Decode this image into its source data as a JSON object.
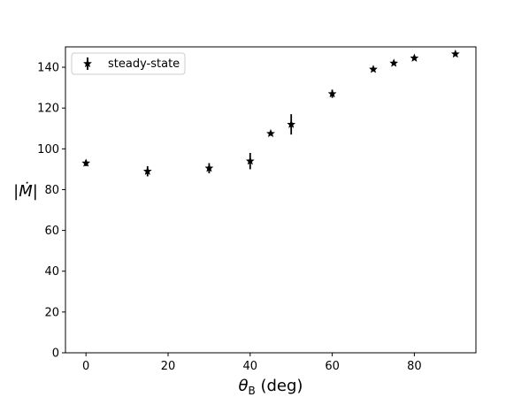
{
  "chart_data": {
    "type": "scatter",
    "title": "",
    "xlabel": "θ_B (deg)",
    "xlabel_main": "θ",
    "xlabel_sub": "B",
    "xlabel_unit": " (deg)",
    "ylabel": "|Ṁ|",
    "xlim": [
      -5,
      95
    ],
    "ylim": [
      0,
      150
    ],
    "xticks": [
      0,
      20,
      40,
      60,
      80
    ],
    "yticks": [
      0,
      20,
      40,
      60,
      80,
      100,
      120,
      140
    ],
    "grid": false,
    "legend_position": "top-left",
    "series": [
      {
        "name": "steady-state",
        "marker": "star",
        "color": "#000000",
        "points": [
          {
            "x": 0,
            "y": 93,
            "err": 1.5
          },
          {
            "x": 15,
            "y": 89,
            "err": 2.5
          },
          {
            "x": 30,
            "y": 90.5,
            "err": 2.5
          },
          {
            "x": 40,
            "y": 94,
            "err": 4
          },
          {
            "x": 45,
            "y": 107.5,
            "err": 0
          },
          {
            "x": 50,
            "y": 112,
            "err": 5
          },
          {
            "x": 60,
            "y": 127,
            "err": 2
          },
          {
            "x": 70,
            "y": 139,
            "err": 0
          },
          {
            "x": 75,
            "y": 142,
            "err": 0
          },
          {
            "x": 80,
            "y": 144.5,
            "err": 0
          },
          {
            "x": 90,
            "y": 146.5,
            "err": 0
          }
        ]
      }
    ]
  }
}
